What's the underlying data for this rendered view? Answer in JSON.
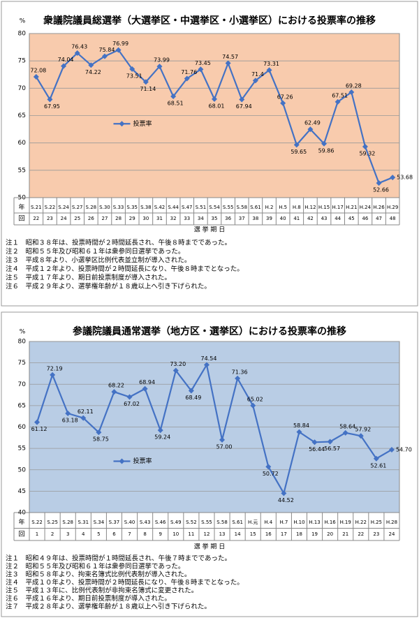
{
  "chart_data": [
    {
      "type": "line",
      "title": "衆議院議員総選挙（大選挙区・中選挙区・小選挙区）における投票率の推移",
      "y_unit": "%",
      "categories": [
        "S.21",
        "S.22",
        "S.24",
        "S.27",
        "S.28",
        "S.30",
        "S.33",
        "S.35",
        "S.38",
        "S.42",
        "S.44",
        "S.47",
        "S.51",
        "S.54",
        "S.55",
        "S.58",
        "S.61",
        "H.2",
        "H.5",
        "H.8",
        "H.12",
        "H.15",
        "H.17",
        "H.21",
        "H.24",
        "H.26",
        "H.29"
      ],
      "election_numbers": [
        "22",
        "23",
        "24",
        "25",
        "26",
        "27",
        "28",
        "29",
        "30",
        "31",
        "32",
        "33",
        "34",
        "35",
        "36",
        "37",
        "38",
        "39",
        "40",
        "41",
        "42",
        "43",
        "44",
        "45",
        "46",
        "47",
        "48"
      ],
      "row_labels": [
        "年",
        "回"
      ],
      "xlabel": "選 挙 期 日",
      "series": [
        {
          "name": "投票率",
          "color": "#4472c4",
          "values": [
            72.08,
            67.95,
            74.04,
            76.43,
            74.22,
            75.84,
            76.99,
            73.51,
            71.14,
            73.99,
            68.51,
            71.76,
            73.45,
            68.01,
            74.57,
            67.94,
            71.4,
            73.31,
            67.26,
            59.65,
            62.49,
            59.86,
            67.51,
            69.28,
            59.32,
            52.66,
            53.68
          ]
        }
      ],
      "ylim": [
        50,
        80
      ],
      "yticks": [
        50,
        55,
        60,
        65,
        70,
        75,
        80
      ],
      "grid": true,
      "legend": "center-left",
      "background": "#f8cbad",
      "notes": [
        "注１　昭和３８年は、投票時間が２時間延長され、午後８時までであった。",
        "注２　昭和５５年及び昭和６１年は衆参同日選挙であった。",
        "注３　平成８年より、小選挙区比例代表並立制が導入された。",
        "注４　平成１２年より、投票時間が２時間延長になり、午後８時までとなった。",
        "注５　平成１７年より、期日前投票制度が導入された。",
        "注６　平成２９年より、選挙権年齢が１８歳以上へ引き下げられた。"
      ]
    },
    {
      "type": "line",
      "title": "参議院議員通常選挙（地方区・選挙区）における投票率の推移",
      "y_unit": "%",
      "categories": [
        "S.22",
        "S.25",
        "S.28",
        "S.31",
        "S.34",
        "S.37",
        "S.40",
        "S.43",
        "S.46",
        "S.49",
        "S.52",
        "S.55",
        "S.58",
        "S.61",
        "H.元",
        "H.4",
        "H.7",
        "H.10",
        "H.13",
        "H.16",
        "H.19",
        "H.22",
        "H.25",
        "H.28"
      ],
      "election_numbers": [
        "1",
        "2",
        "3",
        "4",
        "5",
        "6",
        "7",
        "8",
        "9",
        "10",
        "11",
        "12",
        "13",
        "14",
        "15",
        "16",
        "17",
        "18",
        "19",
        "20",
        "21",
        "22",
        "23",
        "24"
      ],
      "row_labels": [
        "年",
        "回"
      ],
      "xlabel": "選 挙 期 日",
      "series": [
        {
          "name": "投票率",
          "color": "#4472c4",
          "values": [
            61.12,
            72.19,
            63.18,
            62.11,
            58.75,
            68.22,
            67.02,
            68.94,
            59.24,
            73.2,
            68.49,
            74.54,
            57.0,
            71.36,
            65.02,
            50.72,
            44.52,
            58.84,
            56.44,
            56.57,
            58.64,
            57.92,
            52.61,
            54.7
          ],
          "value_labels": [
            "61.12",
            "72.19",
            "63.18",
            "62.11",
            "58.75",
            "68.22",
            "67.02",
            "68.94",
            "59.24",
            "73.20",
            "68.49",
            "74.54",
            "57.00",
            "71.36",
            "65.02",
            "50.72",
            "44.52",
            "58.84",
            "56.44",
            "56.57",
            "58.64",
            "57.92",
            "52.61",
            "54.70"
          ]
        }
      ],
      "ylim": [
        40,
        80
      ],
      "yticks": [
        40,
        45,
        50,
        55,
        60,
        65,
        70,
        75,
        80
      ],
      "grid": true,
      "legend": "lower-left",
      "background": "#b9cde5",
      "notes": [
        "注１　昭和４９年は、投票時間が１時間延長され、午後７時までであった。",
        "注２　昭和５５年及び昭和６１年は衆参同日選挙であった。",
        "注３　昭和５８年より、拘束名簿式比例代表制が導入された。",
        "注４　平成１０年より、投票時間が２時間延長になり、午後８時までとなった。",
        "注５　平成１３年に、比例代表制が非拘束名簿式に変更された。",
        "注６　平成１６年より、期日前投票制度が導入された。",
        "注７　平成２８年より、選挙権年齢が１８歳以上へ引き下げられた。"
      ]
    }
  ]
}
